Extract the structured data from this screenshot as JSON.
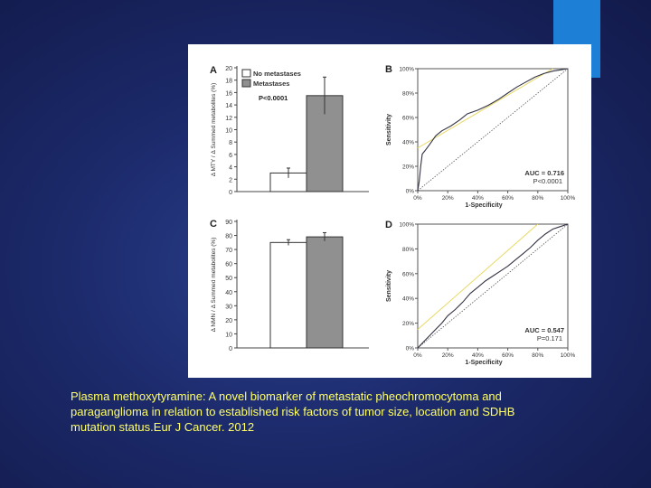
{
  "caption": {
    "line1": "Plasma methoxytyramine: A novel biomarker of metastatic pheochromocytoma and",
    "line2": "paraganglioma in relation to established risk factors of tumor size, location and SDHB",
    "line3": "mutation status.Eur J Cancer. 2012"
  },
  "colors": {
    "accent": "#1e7fd6",
    "caption": "#ffff66"
  },
  "chart_data": [
    {
      "panel": "A",
      "type": "bar",
      "categories": [
        "No metastases",
        "Metastases"
      ],
      "values": [
        3.0,
        15.5
      ],
      "errors": [
        0.8,
        3.0
      ],
      "ylabel": "Δ MTY / Δ Summed metabolites (%)",
      "ylim": [
        0,
        20
      ],
      "yticks": [
        0,
        2,
        4,
        6,
        8,
        10,
        12,
        14,
        16,
        18,
        20
      ],
      "annotation": "P<0.0001",
      "legend": [
        "No metastases",
        "Metastases"
      ],
      "legend_position": "top-left",
      "series_colors": [
        "#ffffff",
        "#909090"
      ]
    },
    {
      "panel": "B",
      "type": "line",
      "xlabel": "1-Specificity",
      "ylabel": "Sensitivity",
      "xticks": [
        "0%",
        "20%",
        "40%",
        "60%",
        "80%",
        "100%"
      ],
      "yticks": [
        "0%",
        "20%",
        "40%",
        "60%",
        "80%",
        "100%"
      ],
      "xlim": [
        0,
        100
      ],
      "ylim": [
        0,
        100
      ],
      "annotation_auc": "AUC = 0.716",
      "annotation_p": "P<0.0001",
      "roc": [
        [
          0,
          0
        ],
        [
          1,
          8
        ],
        [
          2,
          20
        ],
        [
          3,
          30
        ],
        [
          5,
          33
        ],
        [
          8,
          38
        ],
        [
          12,
          45
        ],
        [
          16,
          49
        ],
        [
          22,
          53
        ],
        [
          28,
          58
        ],
        [
          33,
          63
        ],
        [
          40,
          66
        ],
        [
          47,
          70
        ],
        [
          54,
          75
        ],
        [
          60,
          80
        ],
        [
          66,
          85
        ],
        [
          72,
          89
        ],
        [
          78,
          93
        ],
        [
          84,
          96
        ],
        [
          90,
          98
        ],
        [
          95,
          99
        ],
        [
          100,
          100
        ]
      ],
      "reference": [
        [
          0,
          0
        ],
        [
          100,
          100
        ]
      ],
      "tangent": [
        [
          0,
          35
        ],
        [
          90,
          100
        ]
      ]
    },
    {
      "panel": "C",
      "type": "bar",
      "categories": [
        "No metastases",
        "Metastases"
      ],
      "values": [
        75,
        79
      ],
      "errors": [
        2,
        3
      ],
      "ylabel": "Δ NMN / Δ Summed metabolites (%)",
      "ylim": [
        0,
        90
      ],
      "yticks": [
        0,
        10,
        20,
        30,
        40,
        50,
        60,
        70,
        80,
        90
      ],
      "series_colors": [
        "#ffffff",
        "#909090"
      ]
    },
    {
      "panel": "D",
      "type": "line",
      "xlabel": "1-Specificity",
      "ylabel": "Sensitivity",
      "xticks": [
        "0%",
        "20%",
        "40%",
        "60%",
        "80%",
        "100%"
      ],
      "yticks": [
        "0%",
        "20%",
        "40%",
        "60%",
        "80%",
        "100%"
      ],
      "xlim": [
        0,
        100
      ],
      "ylim": [
        0,
        100
      ],
      "annotation_auc": "AUC = 0.547",
      "annotation_p": "P=0.171",
      "roc": [
        [
          0,
          0
        ],
        [
          4,
          5
        ],
        [
          8,
          10
        ],
        [
          12,
          15
        ],
        [
          16,
          20
        ],
        [
          20,
          26
        ],
        [
          25,
          31
        ],
        [
          30,
          37
        ],
        [
          35,
          44
        ],
        [
          40,
          49
        ],
        [
          45,
          54
        ],
        [
          50,
          58
        ],
        [
          55,
          62
        ],
        [
          60,
          66
        ],
        [
          65,
          71
        ],
        [
          70,
          76
        ],
        [
          75,
          81
        ],
        [
          80,
          87
        ],
        [
          85,
          92
        ],
        [
          90,
          96
        ],
        [
          95,
          98
        ],
        [
          100,
          100
        ]
      ],
      "reference": [
        [
          0,
          0
        ],
        [
          100,
          100
        ]
      ],
      "tangent": [
        [
          0,
          15
        ],
        [
          80,
          100
        ]
      ]
    }
  ]
}
